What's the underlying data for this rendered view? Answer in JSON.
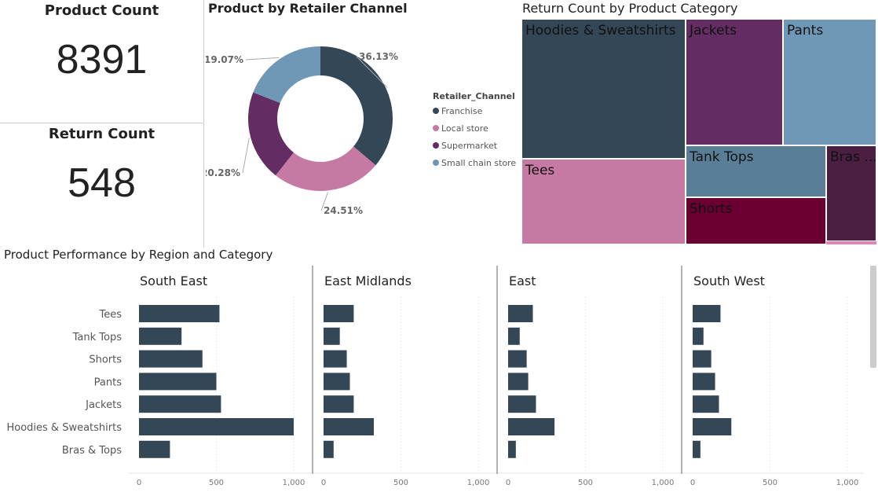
{
  "kpis": {
    "product_count": {
      "title": "Product Count",
      "value": "8391"
    },
    "return_count": {
      "title": "Return Count",
      "value": "548"
    }
  },
  "chart_data": [
    {
      "type": "pie",
      "title": "Product by Retailer Channel",
      "legend_title": "Retailer_Channel",
      "legend_placement": "right",
      "categories": [
        "Franchise",
        "Local store",
        "Supermarket",
        "Small chain store"
      ],
      "values": [
        36.13,
        24.51,
        20.28,
        19.07
      ],
      "labels": [
        "36.13%",
        "24.51%",
        "20.28%",
        "19.07%"
      ],
      "colors": [
        "#344756",
        "#c679a3",
        "#632c62",
        "#6f98b6"
      ]
    },
    {
      "type": "treemap",
      "title": "Return Count by Product Category",
      "categories": [
        "Hoodies & Sweatshirts",
        "Tees",
        "Jackets",
        "Pants",
        "Tank Tops",
        "Shorts",
        "Bras ..."
      ],
      "colors": [
        "#344756",
        "#c679a3",
        "#632c62",
        "#6f98b6",
        "#5a7e97",
        "#6a0032",
        "#4a1f42"
      ]
    },
    {
      "type": "bar",
      "orientation": "horizontal",
      "title": "Product Performance by Region and Category",
      "categories": [
        "Tees",
        "Tank Tops",
        "Shorts",
        "Pants",
        "Jackets",
        "Hoodies & Sweatshirts",
        "Bras & Tops"
      ],
      "xlim": [
        0,
        1000
      ],
      "xticks": [
        "0",
        "500",
        "1,000"
      ],
      "color": "#344756",
      "panels": [
        {
          "name": "South East",
          "values": [
            520,
            275,
            410,
            500,
            530,
            1000,
            200
          ]
        },
        {
          "name": "East Midlands",
          "values": [
            195,
            105,
            150,
            170,
            195,
            325,
            65
          ]
        },
        {
          "name": "East",
          "values": [
            160,
            75,
            120,
            130,
            180,
            300,
            50
          ]
        },
        {
          "name": "South West",
          "values": [
            180,
            70,
            120,
            145,
            170,
            250,
            50
          ]
        }
      ]
    }
  ]
}
